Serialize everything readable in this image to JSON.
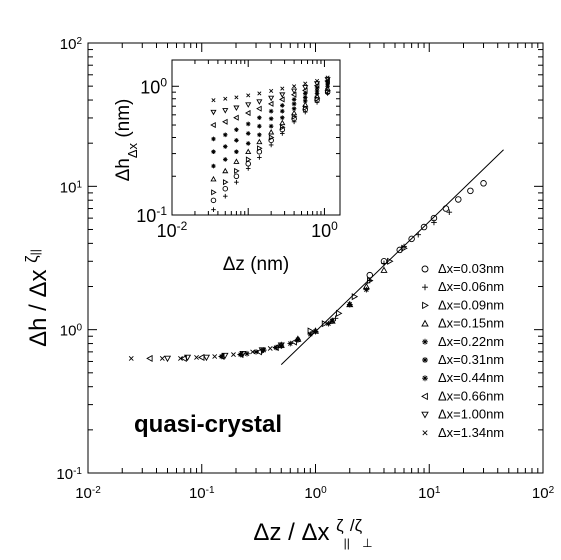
{
  "chart_data": [
    {
      "id": "main",
      "type": "scatter",
      "title": "",
      "xscale": "log",
      "yscale": "log",
      "xlim": [
        0.01,
        100
      ],
      "ylim": [
        0.1,
        100
      ],
      "x_ticks": [
        {
          "base": "10",
          "exp": "-2"
        },
        {
          "base": "10",
          "exp": "-1"
        },
        {
          "base": "10",
          "exp": "0"
        },
        {
          "base": "10",
          "exp": "1"
        },
        {
          "base": "10",
          "exp": "2"
        }
      ],
      "y_ticks": [
        {
          "base": "10",
          "exp": "-1"
        },
        {
          "base": "10",
          "exp": "0"
        },
        {
          "base": "10",
          "exp": "1"
        },
        {
          "base": "10",
          "exp": "2"
        }
      ],
      "xlabel": {
        "main": "Δz / Δx ",
        "sup_zeta": "ζ",
        "sup_par": "||",
        "sup_slash": "/",
        "sup_zeta2": "ζ",
        "sub_perp": "⊥"
      },
      "ylabel": {
        "main": "Δh / Δx ",
        "sup_zeta": "ζ",
        "sub_par": "||"
      },
      "annotation": "quasi-crystal",
      "legend_position": "right",
      "reference_line": {
        "x": [
          0.5,
          45
        ],
        "y": [
          0.57,
          18
        ]
      },
      "series": [
        {
          "name": "Δx=0.03nm",
          "marker": "circle",
          "x": [
            3,
            4,
            5.5,
            7,
            9,
            11,
            14,
            18,
            23,
            30
          ],
          "y": [
            2.4,
            3.0,
            3.6,
            4.3,
            5.2,
            6.0,
            7.0,
            8.1,
            9.3,
            10.5
          ]
        },
        {
          "name": "Δx=0.06nm",
          "marker": "plus",
          "x": [
            1.5,
            2,
            3,
            4,
            6,
            8,
            11,
            15
          ],
          "y": [
            1.2,
            1.5,
            2.2,
            2.9,
            3.8,
            4.6,
            5.6,
            6.6
          ]
        },
        {
          "name": "Δx=0.09nm",
          "marker": "triangle-right",
          "x": [
            0.9,
            1.2,
            1.6,
            2.2,
            3,
            4.5,
            6
          ],
          "y": [
            0.98,
            1.1,
            1.3,
            1.7,
            2.2,
            3.0,
            3.7
          ]
        },
        {
          "name": "Δx=0.15nm",
          "marker": "triangle-up",
          "x": [
            0.5,
            0.7,
            1.0,
            1.4,
            2.0,
            2.8,
            4.0
          ],
          "y": [
            0.78,
            0.86,
            0.98,
            1.15,
            1.5,
            2.0,
            2.6
          ]
        },
        {
          "name": "Δx=0.22nm",
          "marker": "asterisk",
          "x": [
            0.35,
            0.5,
            0.7,
            1.0,
            1.4,
            2.0,
            2.8
          ],
          "y": [
            0.72,
            0.77,
            0.85,
            0.97,
            1.15,
            1.5,
            1.9
          ]
        },
        {
          "name": "Δx=0.31nm",
          "marker": "asterisk",
          "x": [
            0.25,
            0.35,
            0.5,
            0.7,
            1.0,
            1.4,
            2.0
          ],
          "y": [
            0.68,
            0.72,
            0.77,
            0.85,
            0.97,
            1.15,
            1.5
          ]
        },
        {
          "name": "Δx=0.44nm",
          "marker": "asterisk",
          "x": [
            0.15,
            0.22,
            0.3,
            0.45,
            0.6,
            0.9,
            1.3
          ],
          "y": [
            0.65,
            0.67,
            0.7,
            0.75,
            0.8,
            0.93,
            1.1
          ]
        },
        {
          "name": "Δx=0.66nm",
          "marker": "triangle-left",
          "x": [
            0.035,
            0.07,
            0.1,
            0.15,
            0.22,
            0.32,
            0.45,
            0.65
          ],
          "y": [
            0.63,
            0.63,
            0.64,
            0.65,
            0.67,
            0.7,
            0.75,
            0.82
          ]
        },
        {
          "name": "Δx=1.00nm",
          "marker": "triangle-down",
          "x": [
            0.05,
            0.075,
            0.11,
            0.16,
            0.23,
            0.34,
            0.5
          ],
          "y": [
            0.63,
            0.64,
            0.64,
            0.66,
            0.68,
            0.72,
            0.78
          ]
        },
        {
          "name": "Δx=1.34nm",
          "marker": "cross",
          "x": [
            0.024,
            0.045,
            0.065,
            0.09,
            0.13,
            0.19,
            0.28,
            0.4
          ],
          "y": [
            0.63,
            0.63,
            0.63,
            0.64,
            0.65,
            0.67,
            0.7,
            0.74
          ]
        }
      ]
    },
    {
      "id": "inset",
      "type": "scatter",
      "title": "",
      "xscale": "log",
      "yscale": "log",
      "xlim": [
        0.01,
        1.6
      ],
      "ylim": [
        0.1,
        1.6
      ],
      "x_ticks": [
        {
          "label": "10",
          "exp": "-2",
          "value": 0.01
        },
        {
          "label": "10",
          "exp": "0",
          "value": 1
        }
      ],
      "y_ticks": [
        {
          "label": "10",
          "exp": "-1",
          "value": 0.1
        },
        {
          "label": "10",
          "exp": "0",
          "value": 1
        }
      ],
      "xlabel": "Δz (nm)",
      "ylabel": {
        "main": "Δh",
        "sub": "Δx",
        "unit": " (nm)"
      },
      "series": [
        {
          "name": "Δx=0.03nm",
          "marker": "circle",
          "x": [
            0.035,
            0.05,
            0.07,
            0.1,
            0.14,
            0.2,
            0.28,
            0.4,
            0.56,
            0.8,
            1.1
          ],
          "y": [
            0.13,
            0.16,
            0.2,
            0.25,
            0.31,
            0.38,
            0.46,
            0.56,
            0.66,
            0.78,
            0.9
          ]
        },
        {
          "name": "Δx=0.06nm",
          "marker": "plus",
          "x": [
            0.035,
            0.05,
            0.07,
            0.1,
            0.14,
            0.2,
            0.28,
            0.4,
            0.56,
            0.8,
            1.1
          ],
          "y": [
            0.11,
            0.14,
            0.18,
            0.23,
            0.28,
            0.35,
            0.43,
            0.53,
            0.63,
            0.75,
            0.88
          ]
        },
        {
          "name": "Δx=0.09nm",
          "marker": "triangle-right",
          "x": [
            0.035,
            0.05,
            0.07,
            0.1,
            0.14,
            0.2,
            0.28,
            0.4,
            0.56,
            0.8,
            1.1
          ],
          "y": [
            0.15,
            0.18,
            0.22,
            0.27,
            0.33,
            0.4,
            0.48,
            0.58,
            0.68,
            0.8,
            0.92
          ]
        },
        {
          "name": "Δx=0.15nm",
          "marker": "triangle-up",
          "x": [
            0.035,
            0.05,
            0.07,
            0.1,
            0.14,
            0.2,
            0.28,
            0.4,
            0.56,
            0.8,
            1.1
          ],
          "y": [
            0.19,
            0.22,
            0.26,
            0.31,
            0.37,
            0.44,
            0.52,
            0.62,
            0.72,
            0.84,
            0.96
          ]
        },
        {
          "name": "Δx=0.22nm",
          "marker": "asterisk",
          "x": [
            0.035,
            0.05,
            0.07,
            0.1,
            0.14,
            0.2,
            0.28,
            0.4,
            0.56,
            0.8,
            1.1
          ],
          "y": [
            0.24,
            0.27,
            0.31,
            0.36,
            0.42,
            0.49,
            0.57,
            0.67,
            0.77,
            0.88,
            1.0
          ]
        },
        {
          "name": "Δx=0.31nm",
          "marker": "asterisk",
          "x": [
            0.035,
            0.05,
            0.07,
            0.1,
            0.14,
            0.2,
            0.28,
            0.4,
            0.56,
            0.8,
            1.1
          ],
          "y": [
            0.31,
            0.34,
            0.38,
            0.43,
            0.49,
            0.56,
            0.64,
            0.73,
            0.82,
            0.92,
            1.04
          ]
        },
        {
          "name": "Δx=0.44nm",
          "marker": "asterisk",
          "x": [
            0.035,
            0.05,
            0.07,
            0.1,
            0.14,
            0.2,
            0.28,
            0.4,
            0.56,
            0.8,
            1.1
          ],
          "y": [
            0.39,
            0.42,
            0.46,
            0.51,
            0.57,
            0.64,
            0.71,
            0.79,
            0.88,
            0.97,
            1.08
          ]
        },
        {
          "name": "Δx=0.66nm",
          "marker": "triangle-left",
          "x": [
            0.035,
            0.05,
            0.07,
            0.1,
            0.14,
            0.2,
            0.28,
            0.4,
            0.56,
            0.8,
            1.1
          ],
          "y": [
            0.5,
            0.53,
            0.57,
            0.62,
            0.67,
            0.73,
            0.79,
            0.86,
            0.93,
            1.01,
            1.1
          ]
        },
        {
          "name": "Δx=1.00nm",
          "marker": "triangle-down",
          "x": [
            0.035,
            0.05,
            0.07,
            0.1,
            0.14,
            0.2,
            0.28,
            0.4,
            0.56,
            0.8,
            1.1
          ],
          "y": [
            0.63,
            0.65,
            0.68,
            0.72,
            0.76,
            0.81,
            0.86,
            0.92,
            0.98,
            1.05,
            1.13
          ]
        },
        {
          "name": "Δx=1.34nm",
          "marker": "cross",
          "x": [
            0.035,
            0.05,
            0.07,
            0.1,
            0.14,
            0.2,
            0.28,
            0.4,
            0.56,
            0.8,
            1.1
          ],
          "y": [
            0.78,
            0.8,
            0.82,
            0.85,
            0.88,
            0.92,
            0.96,
            1.0,
            1.05,
            1.1,
            1.17
          ]
        }
      ]
    }
  ]
}
